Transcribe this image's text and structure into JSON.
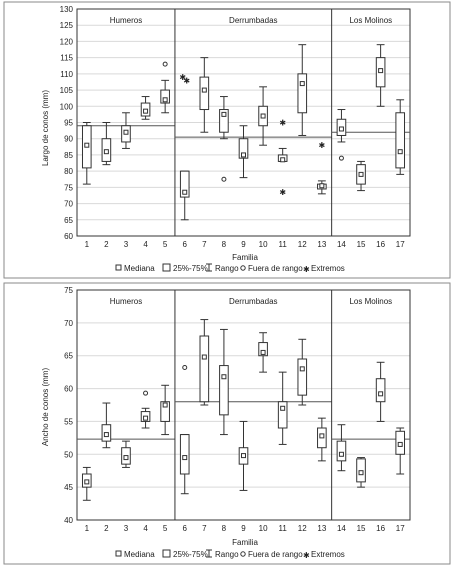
{
  "chart_data": [
    {
      "type": "boxplot",
      "xlabel": "Familia",
      "ylabel": "Largo de conos (mm)",
      "ylim": [
        60,
        130
      ],
      "yticks": [
        60,
        65,
        70,
        75,
        80,
        85,
        90,
        95,
        100,
        105,
        110,
        115,
        120,
        125,
        130
      ],
      "categories": [
        "1",
        "2",
        "3",
        "4",
        "5",
        "6",
        "7",
        "8",
        "9",
        "10",
        "11",
        "12",
        "13",
        "14",
        "15",
        "16",
        "17"
      ],
      "groups": [
        {
          "label": "Humeros",
          "families": [
            "1",
            "2",
            "3",
            "4",
            "5"
          ],
          "mean_line": 94
        },
        {
          "label": "Derrumbadas",
          "families": [
            "6",
            "7",
            "8",
            "9",
            "10",
            "11",
            "12",
            "13"
          ],
          "mean_line": 90.5
        },
        {
          "label": "Los Molinos",
          "families": [
            "14",
            "15",
            "16",
            "17"
          ],
          "mean_line": 92
        }
      ],
      "series": [
        {
          "family": "1",
          "median": 88,
          "q1": 81,
          "q3": 94,
          "min": 76,
          "max": 95,
          "outliers": [],
          "extremes": []
        },
        {
          "family": "2",
          "median": 86,
          "q1": 83,
          "q3": 90,
          "min": 82,
          "max": 95,
          "outliers": [],
          "extremes": []
        },
        {
          "family": "3",
          "median": 92,
          "q1": 89,
          "q3": 94,
          "min": 87,
          "max": 98,
          "outliers": [],
          "extremes": []
        },
        {
          "family": "4",
          "median": 98.5,
          "q1": 97,
          "q3": 101,
          "min": 96,
          "max": 103,
          "outliers": [],
          "extremes": []
        },
        {
          "family": "5",
          "median": 102,
          "q1": 101,
          "q3": 105,
          "min": 98,
          "max": 108,
          "outliers": [
            113
          ],
          "extremes": []
        },
        {
          "family": "6",
          "median": 73.5,
          "q1": 72,
          "q3": 80,
          "min": 65,
          "max": 80,
          "outliers": [],
          "extremes": [
            109,
            108
          ]
        },
        {
          "family": "7",
          "median": 105,
          "q1": 99,
          "q3": 109,
          "min": 92,
          "max": 115,
          "outliers": [],
          "extremes": []
        },
        {
          "family": "8",
          "median": 97.5,
          "q1": 92,
          "q3": 99,
          "min": 90,
          "max": 103,
          "outliers": [
            77.5
          ],
          "extremes": []
        },
        {
          "family": "9",
          "median": 85,
          "q1": 84,
          "q3": 90,
          "min": 78,
          "max": 94,
          "outliers": [],
          "extremes": []
        },
        {
          "family": "10",
          "median": 97,
          "q1": 94,
          "q3": 100,
          "min": 88,
          "max": 106,
          "outliers": [],
          "extremes": []
        },
        {
          "family": "11",
          "median": 83.5,
          "q1": 83,
          "q3": 85,
          "min": 83,
          "max": 87,
          "outliers": [],
          "extremes": [
            95,
            73.5
          ]
        },
        {
          "family": "12",
          "median": 107,
          "q1": 98,
          "q3": 110,
          "min": 91,
          "max": 119,
          "outliers": [],
          "extremes": []
        },
        {
          "family": "13",
          "median": 75.5,
          "q1": 74.5,
          "q3": 76,
          "min": 73,
          "max": 77,
          "outliers": [],
          "extremes": [
            88
          ]
        },
        {
          "family": "14",
          "median": 93,
          "q1": 91,
          "q3": 96,
          "min": 89,
          "max": 99,
          "outliers": [
            84
          ],
          "extremes": []
        },
        {
          "family": "15",
          "median": 79,
          "q1": 76,
          "q3": 82,
          "min": 74,
          "max": 83,
          "outliers": [],
          "extremes": []
        },
        {
          "family": "16",
          "median": 111,
          "q1": 106,
          "q3": 115,
          "min": 100,
          "max": 119,
          "outliers": [],
          "extremes": []
        },
        {
          "family": "17",
          "median": 86,
          "q1": 81,
          "q3": 98,
          "min": 79,
          "max": 102,
          "outliers": [],
          "extremes": []
        }
      ]
    },
    {
      "type": "boxplot",
      "xlabel": "Familia",
      "ylabel": "Ancho de conos (mm)",
      "ylim": [
        40,
        75
      ],
      "yticks": [
        40,
        45,
        50,
        55,
        60,
        65,
        70,
        75
      ],
      "categories": [
        "1",
        "2",
        "3",
        "4",
        "5",
        "6",
        "7",
        "8",
        "9",
        "10",
        "11",
        "12",
        "13",
        "14",
        "15",
        "16",
        "17"
      ],
      "groups": [
        {
          "label": "Humeros",
          "families": [
            "1",
            "2",
            "3",
            "4",
            "5"
          ],
          "mean_line": 52.3
        },
        {
          "label": "Derrumbadas",
          "families": [
            "6",
            "7",
            "8",
            "9",
            "10",
            "11",
            "12",
            "13"
          ],
          "mean_line": 58
        },
        {
          "label": "Los Molinos",
          "families": [
            "14",
            "15",
            "16",
            "17"
          ],
          "mean_line": 52.3
        }
      ],
      "series": [
        {
          "family": "1",
          "median": 45.8,
          "q1": 45,
          "q3": 47,
          "min": 43,
          "max": 48,
          "outliers": [],
          "extremes": []
        },
        {
          "family": "2",
          "median": 53,
          "q1": 52,
          "q3": 54.5,
          "min": 51,
          "max": 57.8,
          "outliers": [],
          "extremes": []
        },
        {
          "family": "3",
          "median": 49.5,
          "q1": 48.5,
          "q3": 51,
          "min": 48,
          "max": 52,
          "outliers": [],
          "extremes": []
        },
        {
          "family": "4",
          "median": 55.5,
          "q1": 55,
          "q3": 56.5,
          "min": 54,
          "max": 57,
          "outliers": [
            59.3
          ],
          "extremes": []
        },
        {
          "family": "5",
          "median": 57.5,
          "q1": 55,
          "q3": 58,
          "min": 53,
          "max": 60.5,
          "outliers": [],
          "extremes": []
        },
        {
          "family": "6",
          "median": 49.5,
          "q1": 47,
          "q3": 53,
          "min": 44,
          "max": 53,
          "outliers": [
            63.2
          ],
          "extremes": []
        },
        {
          "family": "7",
          "median": 64.8,
          "q1": 58,
          "q3": 68,
          "min": 57.5,
          "max": 70.5,
          "outliers": [],
          "extremes": []
        },
        {
          "family": "8",
          "median": 61.8,
          "q1": 56,
          "q3": 63.5,
          "min": 53,
          "max": 69,
          "outliers": [],
          "extremes": []
        },
        {
          "family": "9",
          "median": 49.8,
          "q1": 48.5,
          "q3": 51,
          "min": 44.5,
          "max": 55,
          "outliers": [],
          "extremes": []
        },
        {
          "family": "10",
          "median": 65.5,
          "q1": 65,
          "q3": 67,
          "min": 62.5,
          "max": 68.5,
          "outliers": [],
          "extremes": []
        },
        {
          "family": "11",
          "median": 57,
          "q1": 54,
          "q3": 58,
          "min": 51.5,
          "max": 62.5,
          "outliers": [],
          "extremes": []
        },
        {
          "family": "12",
          "median": 63,
          "q1": 59,
          "q3": 64.5,
          "min": 57.5,
          "max": 67.5,
          "outliers": [],
          "extremes": []
        },
        {
          "family": "13",
          "median": 52.8,
          "q1": 51,
          "q3": 54,
          "min": 49,
          "max": 55.5,
          "outliers": [],
          "extremes": []
        },
        {
          "family": "14",
          "median": 50,
          "q1": 49,
          "q3": 52,
          "min": 47.5,
          "max": 54.5,
          "outliers": [],
          "extremes": []
        },
        {
          "family": "15",
          "median": 47.2,
          "q1": 45.8,
          "q3": 49.3,
          "min": 45,
          "max": 49.5,
          "outliers": [],
          "extremes": []
        },
        {
          "family": "16",
          "median": 59.2,
          "q1": 58,
          "q3": 61.5,
          "min": 55,
          "max": 64,
          "outliers": [],
          "extremes": []
        },
        {
          "family": "17",
          "median": 51.5,
          "q1": 50,
          "q3": 53.5,
          "min": 47,
          "max": 54,
          "outliers": [],
          "extremes": []
        }
      ]
    }
  ],
  "legend": {
    "median": "Mediana",
    "box": "25%-75%",
    "range": "Rango",
    "outlier": "Fuera de rango",
    "extreme": "Extremos"
  }
}
